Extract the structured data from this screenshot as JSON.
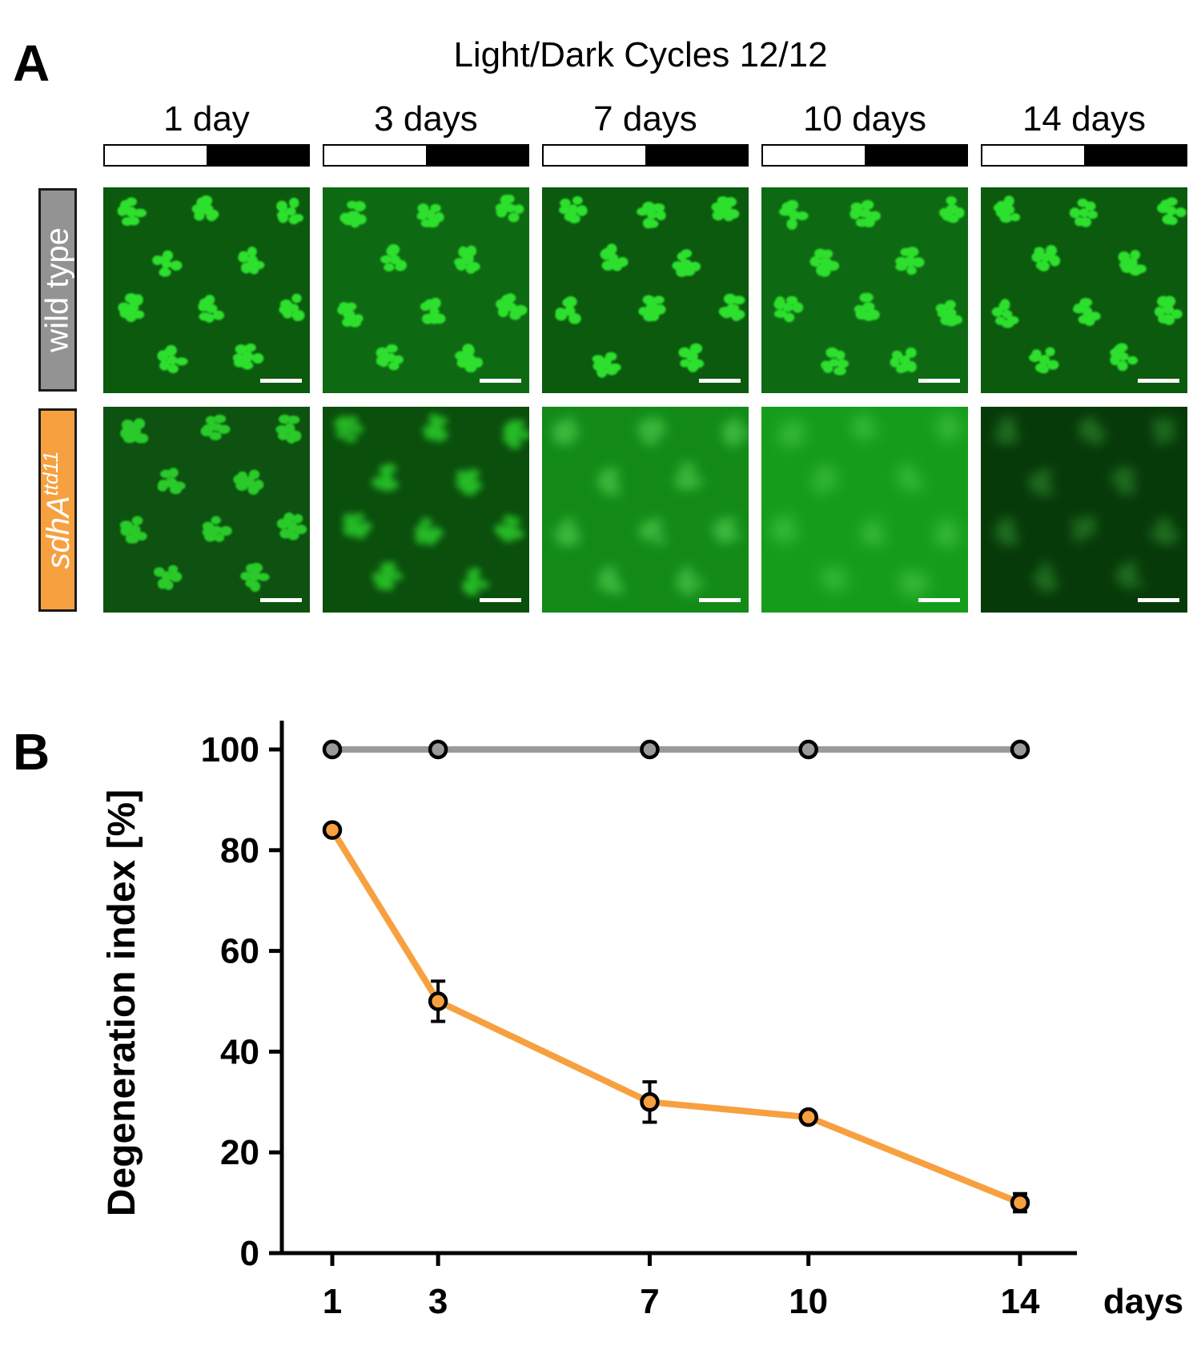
{
  "panels": {
    "a_label": "A",
    "b_label": "B"
  },
  "panel_a": {
    "title": "Light/Dark Cycles 12/12",
    "columns": [
      "1 day",
      "3 days",
      "7 days",
      "10 days",
      "14 days"
    ],
    "rows": [
      {
        "label": "wild type"
      },
      {
        "label_main": "sdhA",
        "label_sup": "ttd11"
      }
    ],
    "colors": {
      "fluorescence": "#22c422",
      "background": "#0a4a0a",
      "wild_type_label_bg": "#939393",
      "mutant_label_bg": "#f7a040"
    }
  },
  "chart_data": {
    "type": "line",
    "x": [
      1,
      3,
      7,
      10,
      14
    ],
    "x_tick_labels": [
      "1",
      "3",
      "7",
      "10",
      "14"
    ],
    "xlabel": "days",
    "ylabel": "Degeneration index [%]",
    "ylim": [
      0,
      100
    ],
    "y_ticks": [
      0,
      20,
      40,
      60,
      80,
      100
    ],
    "grid": false,
    "legend": "none",
    "series": [
      {
        "color": "#9a9a9a",
        "values": [
          100,
          100,
          100,
          100,
          100
        ]
      },
      {
        "color": "#f7a040",
        "values": [
          84,
          50,
          30,
          27,
          10
        ],
        "error": [
          0,
          4,
          4,
          0,
          1.8
        ]
      }
    ]
  }
}
